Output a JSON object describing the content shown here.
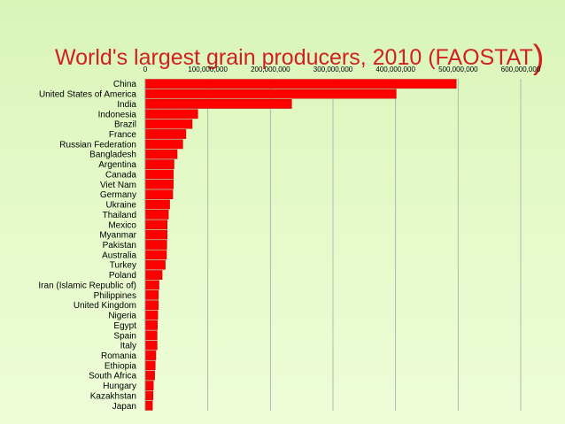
{
  "chart_data": {
    "type": "bar",
    "orientation": "horizontal",
    "title": "World's largest grain producers, 2010 (FAOSTAT",
    "title_suffix": ")",
    "xlim": [
      0,
      600000000
    ],
    "x_ticks": [
      "0",
      "100,000,000",
      "200,000,000",
      "300,000,000",
      "400,000,000",
      "500,000,000",
      "600,000,000"
    ],
    "x_tick_values": [
      0,
      100000000,
      200000000,
      300000000,
      400000000,
      500000000,
      600000000
    ],
    "x_axis_position": "top",
    "grid": true,
    "bar_color": "#ff0000",
    "categories": [
      "China",
      "United States of America",
      "India",
      "Indonesia",
      "Brazil",
      "France",
      "Russian Federation",
      "Bangladesh",
      "Argentina",
      "Canada",
      "Viet Nam",
      "Germany",
      "Ukraine",
      "Thailand",
      "Mexico",
      "Myanmar",
      "Pakistan",
      "Australia",
      "Turkey",
      "Poland",
      "Iran (Islamic Republic of)",
      "Philippines",
      "United Kingdom",
      "Nigeria",
      "Egypt",
      "Spain",
      "Italy",
      "Romania",
      "Ethiopia",
      "South Africa",
      "Hungary",
      "Kazakhstan",
      "Japan"
    ],
    "values": [
      497000000,
      401000000,
      234000000,
      84000000,
      75000000,
      65000000,
      60000000,
      51000000,
      46000000,
      45000000,
      45000000,
      44000000,
      39000000,
      37000000,
      35000000,
      35000000,
      34500000,
      34000000,
      32000000,
      27000000,
      22000000,
      21000000,
      21000000,
      20000000,
      19500000,
      19000000,
      19000000,
      17000000,
      16000000,
      15000000,
      13000000,
      12500000,
      11500000
    ]
  }
}
